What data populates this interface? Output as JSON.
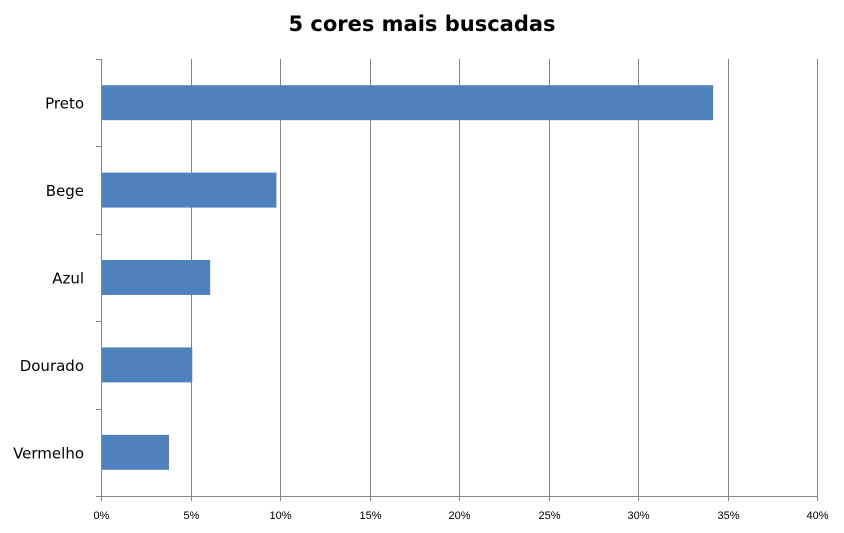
{
  "chart_data": {
    "type": "bar",
    "orientation": "horizontal",
    "title": "5 cores mais buscadas",
    "categories": [
      "Preto",
      "Bege",
      "Azul",
      "Dourado",
      "Vermelho"
    ],
    "values": [
      34.2,
      9.8,
      6.1,
      5.1,
      3.8
    ],
    "unit": "%",
    "xlim": [
      0,
      40
    ],
    "x_ticks": [
      "0%",
      "5%",
      "10%",
      "15%",
      "20%",
      "25%",
      "30%",
      "35%",
      "40%"
    ],
    "xlabel": "",
    "ylabel": "",
    "grid": "vertical",
    "legend": "none",
    "bar_color": "#4F81BD",
    "grid_color": "#868686"
  }
}
